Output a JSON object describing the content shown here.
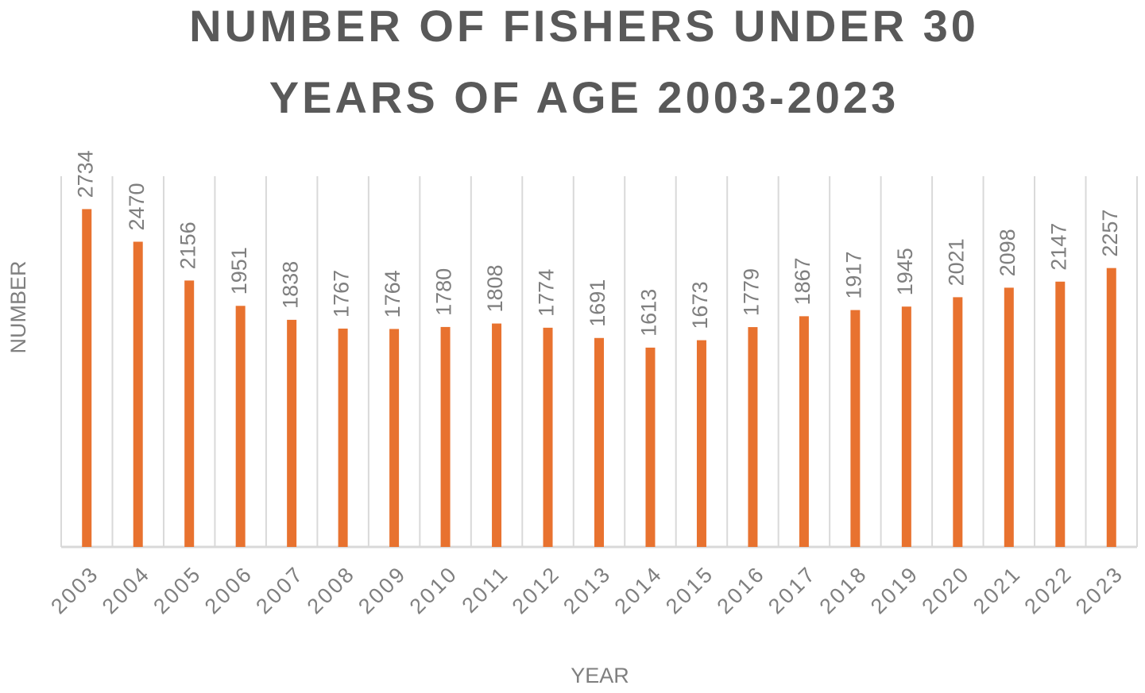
{
  "chart_data": {
    "type": "bar",
    "title": "NUMBER OF FISHERS UNDER 30 YEARS OF AGE 2003-2023",
    "x_label": "YEAR",
    "y_label": "NUMBER",
    "categories": [
      "2003",
      "2004",
      "2005",
      "2006",
      "2007",
      "2008",
      "2009",
      "2010",
      "2011",
      "2012",
      "2013",
      "2014",
      "2015",
      "2016",
      "2017",
      "2018",
      "2019",
      "2020",
      "2021",
      "2022",
      "2023"
    ],
    "values": [
      2734,
      2470,
      2156,
      1951,
      1838,
      1767,
      1764,
      1780,
      1808,
      1774,
      1691,
      1613,
      1673,
      1779,
      1867,
      1917,
      1945,
      2021,
      2098,
      2147,
      2257
    ],
    "color": "#e8722f",
    "ylim": [
      0,
      3000
    ],
    "grid": true
  }
}
